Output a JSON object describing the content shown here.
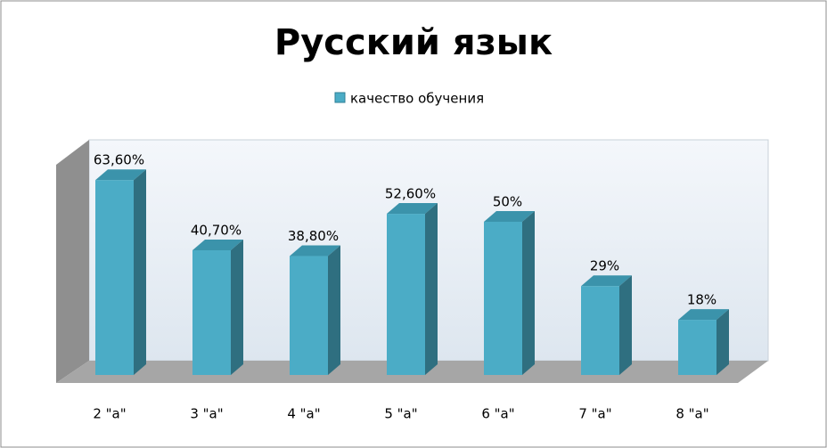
{
  "chart_data": {
    "type": "bar3d",
    "title": "Русский язык",
    "categories": [
      "2 \"а\"",
      "3 \"а\"",
      "4 \"а\"",
      "5 \"а\"",
      "6 \"а\"",
      "7 \"а\"",
      "8 \"а\""
    ],
    "series": [
      {
        "name": "качество обучения",
        "color": "#4bacc6",
        "values": [
          63.6,
          40.7,
          38.8,
          52.6,
          50,
          29,
          18
        ],
        "value_labels": [
          "63,60%",
          "40,70%",
          "38,80%",
          "52,60%",
          "50%",
          "29%",
          "18%"
        ]
      }
    ]
  }
}
